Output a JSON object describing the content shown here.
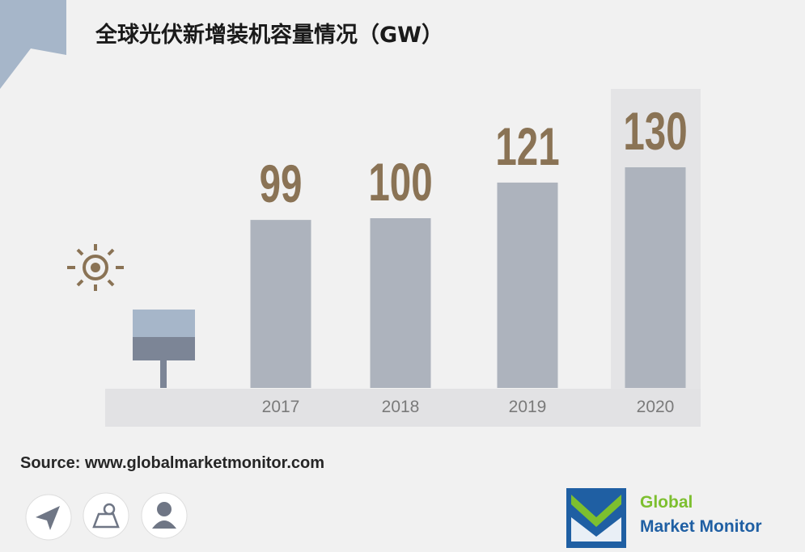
{
  "chart_data": {
    "type": "bar",
    "title": "全球光伏新增装机容量情况（GW）",
    "categories": [
      "2017",
      "2018",
      "2019",
      "2020"
    ],
    "values": [
      99,
      100,
      121,
      130
    ],
    "color": "#adb3bd",
    "label_color": "#8a7355",
    "source": "Source: www.globalmarketmonitor.com"
  },
  "logo": {
    "line1": "Global",
    "line2": "Market Monitor"
  }
}
